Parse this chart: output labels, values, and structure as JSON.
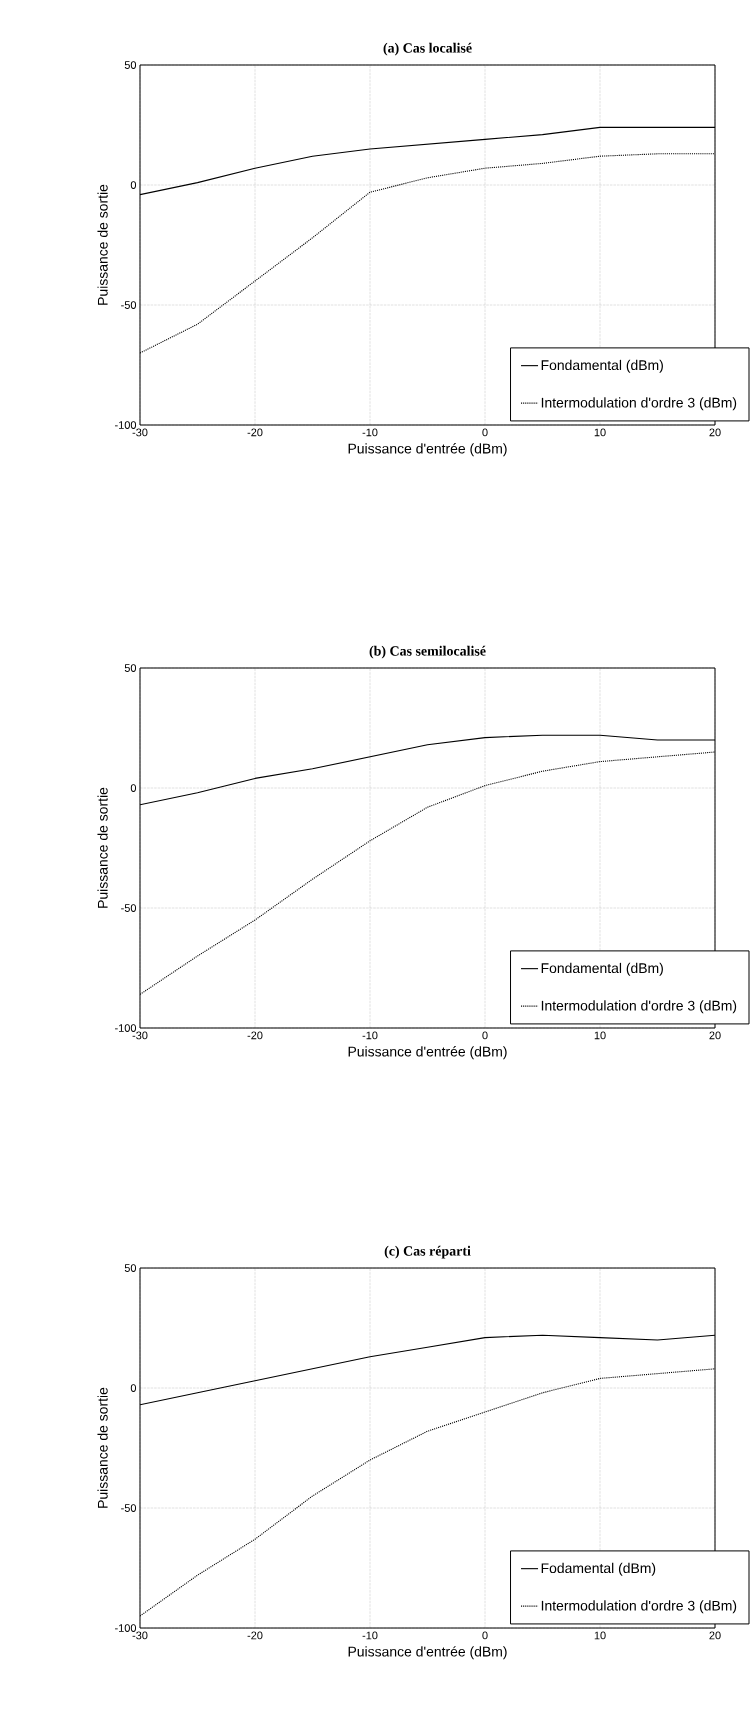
{
  "chart_data": [
    {
      "type": "line",
      "title": "(a) Cas localisé",
      "xlabel": "Puissance d'entrée (dBm)",
      "ylabel": "Puissance de sortie",
      "x": [
        -30,
        -25,
        -20,
        -15,
        -10,
        -5,
        0,
        5,
        10,
        15,
        20
      ],
      "series": [
        {
          "name": "Fondamental (dBm)",
          "color": "#000000",
          "line_style": "solid",
          "values": [
            -4,
            1,
            7,
            12,
            15,
            17,
            19,
            21,
            24,
            24,
            24
          ]
        },
        {
          "name": "Intermodulation d'ordre 3 (dBm)",
          "color": "#000000",
          "line_style": "dotted",
          "values": [
            -70,
            -58,
            -40,
            -22,
            -3,
            3,
            7,
            9,
            12,
            13,
            13
          ]
        }
      ],
      "xlim": [
        -30,
        20
      ],
      "ylim": [
        -100,
        50
      ],
      "xticks": [
        -30,
        -20,
        -10,
        0,
        10,
        20
      ],
      "yticks": [
        -100,
        -50,
        0,
        50
      ],
      "grid": true,
      "legend": "bottom right"
    },
    {
      "type": "line",
      "title": "(b) Cas semilocalisé",
      "xlabel": "Puissance d'entrée (dBm)",
      "ylabel": "Puissance de sortie",
      "x": [
        -30,
        -25,
        -20,
        -15,
        -10,
        -5,
        0,
        5,
        10,
        15,
        20
      ],
      "series": [
        {
          "name": "Fondamental (dBm)",
          "color": "#000000",
          "line_style": "solid",
          "values": [
            -7,
            -2,
            4,
            8,
            13,
            18,
            21,
            22,
            22,
            20,
            20
          ]
        },
        {
          "name": "Intermodulation d'ordre 3 (dBm)",
          "color": "#000000",
          "line_style": "dotted",
          "values": [
            -86,
            -70,
            -55,
            -38,
            -22,
            -8,
            1,
            7,
            11,
            13,
            15
          ]
        }
      ],
      "xlim": [
        -30,
        20
      ],
      "ylim": [
        -100,
        50
      ],
      "xticks": [
        -30,
        -20,
        -10,
        0,
        10,
        20
      ],
      "yticks": [
        -100,
        -50,
        0,
        50
      ],
      "grid": true,
      "legend": "bottom right"
    },
    {
      "type": "line",
      "title": "(c) Cas réparti",
      "xlabel": "Puissance d'entrée (dBm)",
      "ylabel": "Puissance de sortie",
      "x": [
        -30,
        -25,
        -20,
        -15,
        -10,
        -5,
        0,
        5,
        10,
        15,
        20
      ],
      "series": [
        {
          "name": "Fodamental (dBm)",
          "color": "#000000",
          "line_style": "solid",
          "values": [
            -7,
            -2,
            3,
            8,
            13,
            17,
            21,
            22,
            21,
            20,
            22
          ]
        },
        {
          "name": "Intermodulation d'ordre 3 (dBm)",
          "color": "#000000",
          "line_style": "dotted",
          "values": [
            -95,
            -78,
            -63,
            -45,
            -30,
            -18,
            -10,
            -2,
            4,
            6,
            8
          ]
        }
      ],
      "xlim": [
        -30,
        20
      ],
      "ylim": [
        -100,
        50
      ],
      "xticks": [
        -30,
        -20,
        -10,
        0,
        10,
        20
      ],
      "yticks": [
        -100,
        -50,
        0,
        50
      ],
      "grid": true,
      "legend": "bottom right"
    }
  ]
}
